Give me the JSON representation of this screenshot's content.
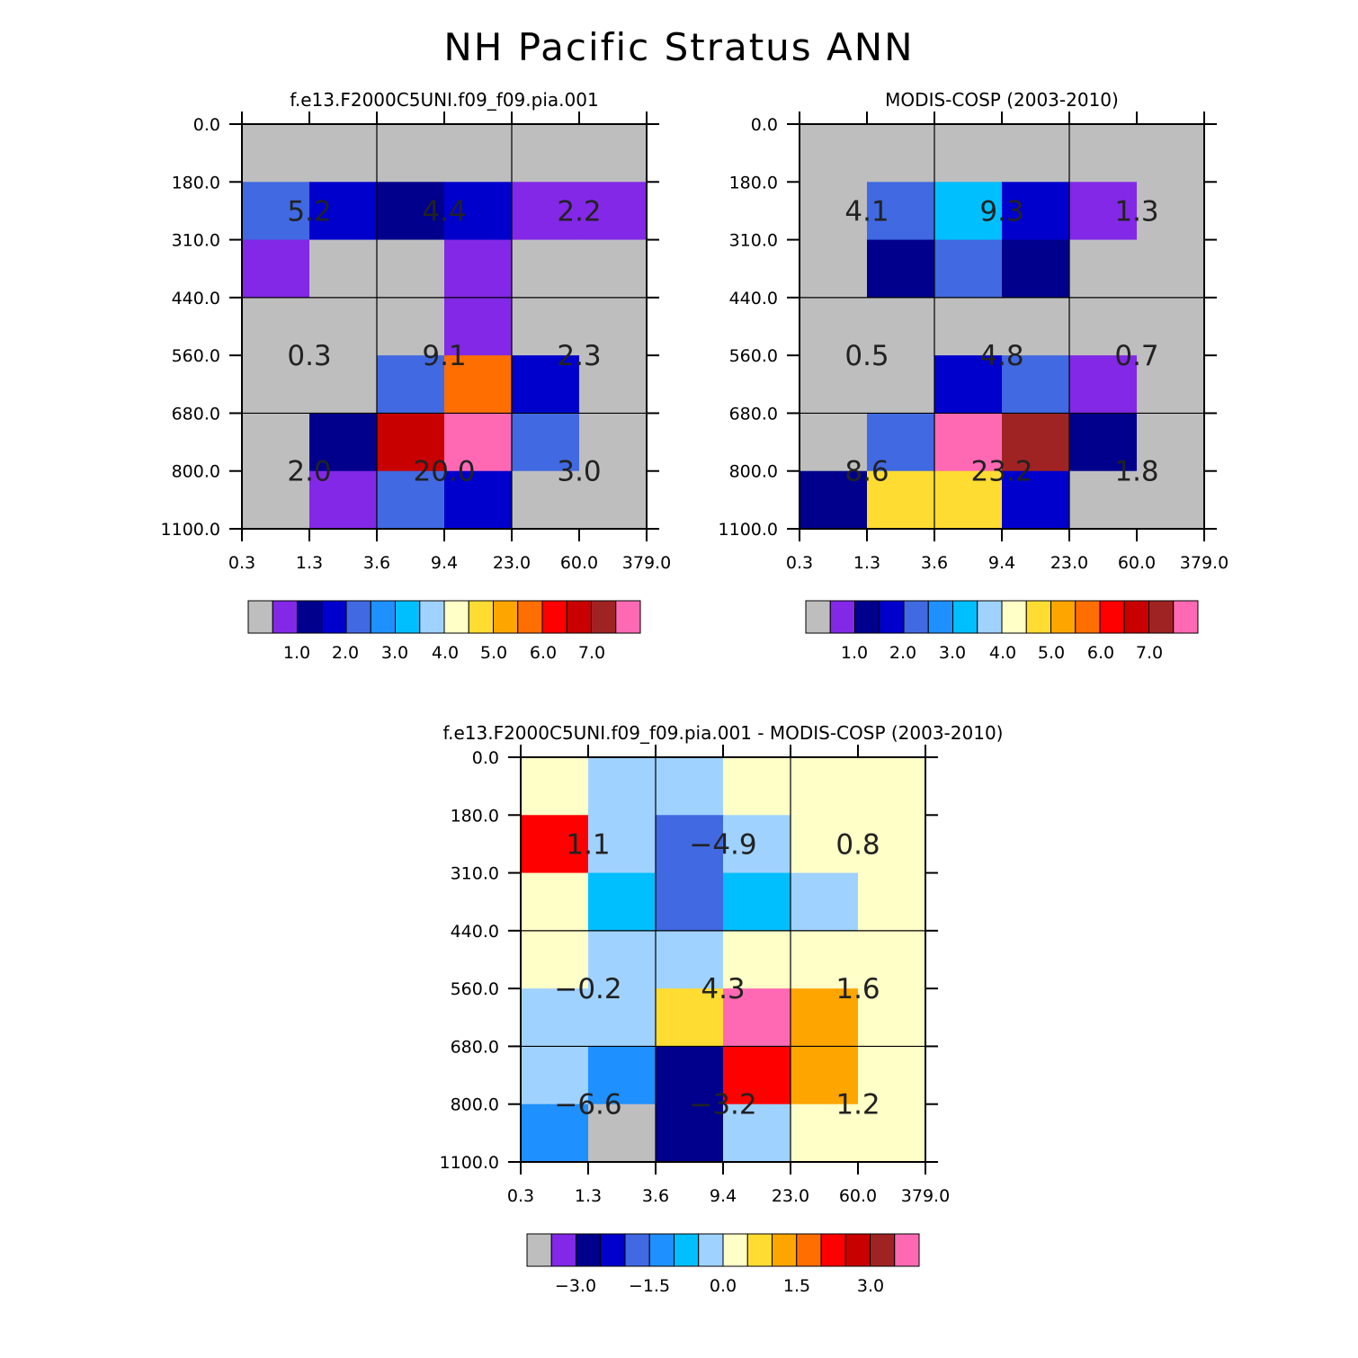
{
  "figure": {
    "title": "NH Pacific Stratus ANN"
  },
  "palette": {
    "colors": [
      "#bebebe",
      "#8228e6",
      "#00008c",
      "#0000cd",
      "#4169e1",
      "#1e90ff",
      "#00bfff",
      "#a0d2ff",
      "#ffffc8",
      "#ffdc32",
      "#ffa500",
      "#ff6e00",
      "#ff0000",
      "#c80000",
      "#a02323",
      "#ff69b4"
    ]
  },
  "chart_data": [
    {
      "type": "heatmap",
      "title": "f.e13.F2000C5UNI.f09_f09.pia.001",
      "x_tick_labels": [
        "0.3",
        "1.3",
        "3.6",
        "9.4",
        "23.0",
        "60.0",
        "379.0"
      ],
      "y_tick_labels": [
        "0.0",
        "180.0",
        "310.0",
        "440.0",
        "560.0",
        "680.0",
        "800.0",
        "1100.0"
      ],
      "cell_color_index": [
        [
          0,
          0,
          0,
          0,
          0,
          0
        ],
        [
          4,
          3,
          2,
          3,
          1,
          1
        ],
        [
          1,
          0,
          0,
          1,
          0,
          0
        ],
        [
          0,
          0,
          0,
          1,
          0,
          0
        ],
        [
          0,
          0,
          4,
          11,
          3,
          0
        ],
        [
          0,
          2,
          13,
          15,
          4,
          0
        ],
        [
          0,
          1,
          4,
          3,
          0,
          0
        ]
      ],
      "block_values": [
        [
          "5.2",
          "4.4",
          "2.2"
        ],
        [
          "0.3",
          "9.1",
          "2.3"
        ],
        [
          "2.0",
          "20.0",
          "3.0"
        ]
      ],
      "colorbar_labels": [
        "1.0",
        "2.0",
        "3.0",
        "4.0",
        "5.0",
        "6.0",
        "7.0"
      ]
    },
    {
      "type": "heatmap",
      "title": "MODIS-COSP (2003-2010)",
      "x_tick_labels": [
        "0.3",
        "1.3",
        "3.6",
        "9.4",
        "23.0",
        "60.0",
        "379.0"
      ],
      "y_tick_labels": [
        "0.0",
        "180.0",
        "310.0",
        "440.0",
        "560.0",
        "680.0",
        "800.0",
        "1100.0"
      ],
      "cell_color_index": [
        [
          0,
          0,
          0,
          0,
          0,
          0
        ],
        [
          0,
          4,
          6,
          3,
          1,
          0
        ],
        [
          0,
          2,
          4,
          2,
          0,
          0
        ],
        [
          0,
          0,
          0,
          0,
          0,
          0
        ],
        [
          0,
          0,
          3,
          4,
          1,
          0
        ],
        [
          0,
          4,
          15,
          14,
          2,
          0
        ],
        [
          2,
          9,
          9,
          3,
          0,
          0
        ]
      ],
      "block_values": [
        [
          "4.1",
          "9.3",
          "1.3"
        ],
        [
          "0.5",
          "4.8",
          "0.7"
        ],
        [
          "8.6",
          "23.2",
          "1.8"
        ]
      ],
      "colorbar_labels": [
        "1.0",
        "2.0",
        "3.0",
        "4.0",
        "5.0",
        "6.0",
        "7.0"
      ]
    },
    {
      "type": "heatmap",
      "title": "f.e13.F2000C5UNI.f09_f09.pia.001 - MODIS-COSP (2003-2010)",
      "x_tick_labels": [
        "0.3",
        "1.3",
        "3.6",
        "9.4",
        "23.0",
        "60.0",
        "379.0"
      ],
      "y_tick_labels": [
        "0.0",
        "180.0",
        "310.0",
        "440.0",
        "560.0",
        "680.0",
        "800.0",
        "1100.0"
      ],
      "cell_color_index": [
        [
          8,
          7,
          7,
          8,
          8,
          8
        ],
        [
          12,
          7,
          4,
          7,
          8,
          8
        ],
        [
          8,
          6,
          4,
          6,
          7,
          8
        ],
        [
          8,
          7,
          7,
          8,
          8,
          8
        ],
        [
          7,
          7,
          9,
          15,
          10,
          8
        ],
        [
          7,
          5,
          2,
          12,
          10,
          8
        ],
        [
          5,
          0,
          2,
          7,
          8,
          8
        ]
      ],
      "block_values": [
        [
          "1.1",
          "-4.9",
          "0.8"
        ],
        [
          "-0.2",
          "4.3",
          "1.6"
        ],
        [
          "-6.6",
          "-3.2",
          "1.2"
        ]
      ],
      "colorbar_labels": [
        "-3.0",
        "-1.5",
        "0.0",
        "1.5",
        "3.0"
      ]
    }
  ]
}
